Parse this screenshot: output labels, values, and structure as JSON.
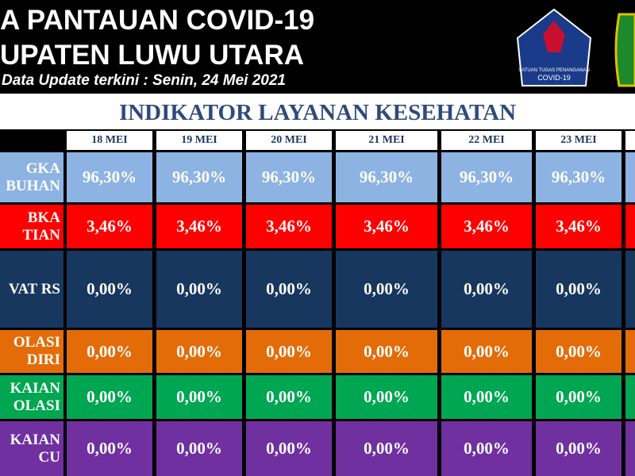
{
  "header": {
    "title_lines": [
      "A PANTAUAN COVID-19",
      "UPATEN LUWU UTARA"
    ],
    "subtitle": "Data Update terkini : Senin, 24 Mei 2021",
    "logo_text": [
      "SATUAN TUGAS PENANGANAN",
      "COVID-19"
    ]
  },
  "table": {
    "title": "INDIKATOR LAYANAN KESEHATAN",
    "columns": [
      "18 MEI",
      "19 MEI",
      "20 MEI",
      "21 MEI",
      "22 MEI",
      "23 MEI"
    ],
    "rows": [
      {
        "label": [
          "GKA",
          "BUHAN"
        ],
        "values": [
          "96,30%",
          "96,30%",
          "96,30%",
          "96,30%",
          "96,30%",
          "96,30%"
        ]
      },
      {
        "label": [
          "BKA",
          "TIAN"
        ],
        "values": [
          "3,46%",
          "3,46%",
          "3,46%",
          "3,46%",
          "3,46%",
          "3,46%"
        ]
      },
      {
        "label": [
          "VAT RS"
        ],
        "values": [
          "0,00%",
          "0,00%",
          "0,00%",
          "0,00%",
          "0,00%",
          "0,00%"
        ]
      },
      {
        "label": [
          "OLASI",
          "DIRI"
        ],
        "values": [
          "0,00%",
          "0,00%",
          "0,00%",
          "0,00%",
          "0,00%",
          "0,00%"
        ]
      },
      {
        "label": [
          "KAIAN",
          "OLASI"
        ],
        "values": [
          "0,00%",
          "0,00%",
          "0,00%",
          "0,00%",
          "0,00%",
          "0,00%"
        ]
      },
      {
        "label": [
          "KAIAN",
          "CU"
        ],
        "values": [
          "0,00%",
          "0,00%",
          "0,00%",
          "0,00%",
          "0,00%",
          "0,00%"
        ]
      }
    ]
  }
}
